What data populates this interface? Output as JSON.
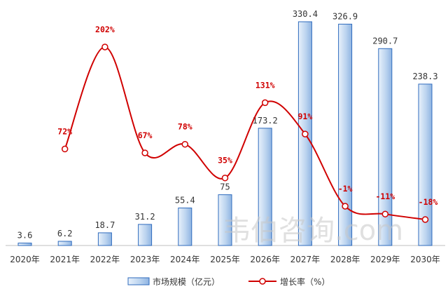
{
  "chart_data": {
    "type": "bar",
    "categories": [
      "2020年",
      "2021年",
      "2022年",
      "2023年",
      "2024年",
      "2025年",
      "2026年",
      "2027年",
      "2028年",
      "2029年",
      "2030年"
    ],
    "series": [
      {
        "name": "市场规模（亿元）",
        "type": "bar",
        "values": [
          3.6,
          6.2,
          18.7,
          31.2,
          55.4,
          75,
          173.2,
          330.4,
          326.9,
          290.7,
          238.3
        ],
        "labels": [
          "3.6",
          "6.2",
          "18.7",
          "31.2",
          "55.4",
          "75",
          "173.2",
          "330.4",
          "326.9",
          "290.7",
          "238.3"
        ]
      },
      {
        "name": "增长率（%）",
        "type": "line",
        "values": [
          null,
          72,
          202,
          67,
          78,
          35,
          131,
          91,
          -1,
          -11,
          -18
        ],
        "labels": [
          "",
          "72%",
          "202%",
          "67%",
          "78%",
          "35%",
          "131%",
          "91%",
          "-1%",
          "-11%",
          "-18%"
        ]
      }
    ],
    "bar_ylim": [
      0,
      330.4
    ],
    "rate_ylim": [
      -30,
      210
    ],
    "grid": false,
    "legend_position": "bottom",
    "colors": {
      "bar_fill": "#bcd4ef",
      "bar_stroke": "#2f6bbd",
      "line": "#d00000",
      "marker_fill": "#ffffff"
    }
  },
  "watermark": "韦伯咨询.com",
  "legend": {
    "bar_label": "市场规模（亿元）",
    "line_label": "增长率（%）"
  }
}
